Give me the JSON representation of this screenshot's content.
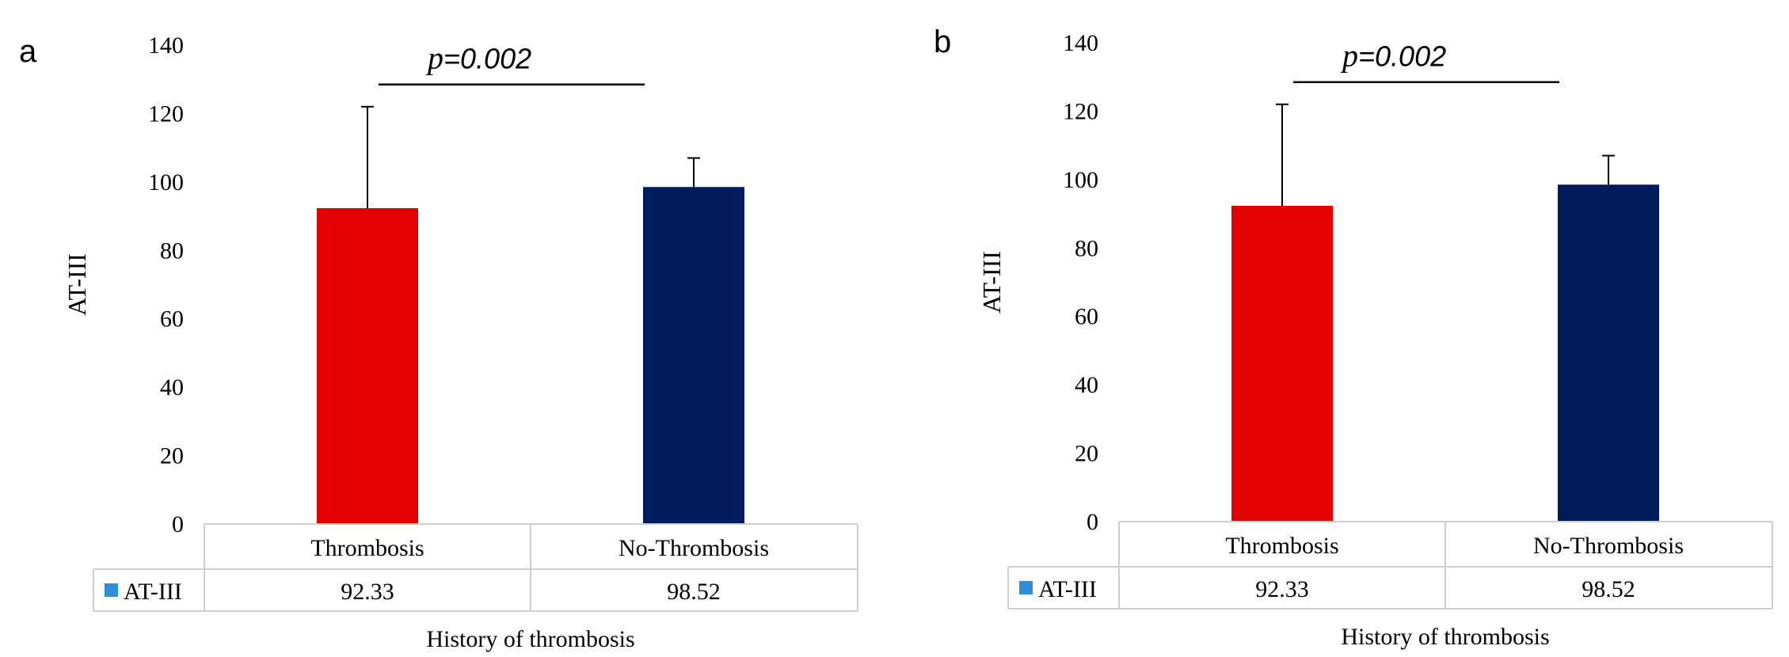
{
  "chart_data": [
    {
      "panel_label": "a",
      "type": "bar",
      "categories": [
        "Thrombosis",
        "No-Thrombosis"
      ],
      "series": [
        {
          "name": "AT-III",
          "values": [
            92.33,
            98.52
          ],
          "error_upper": [
            122,
            107
          ],
          "colors": [
            "#e30000",
            "#001c5c"
          ]
        }
      ],
      "data_table": {
        "legend_label": "AT-III",
        "legend_color": "#2e8fd8",
        "values": [
          "92.33",
          "98.52"
        ]
      },
      "annotation": {
        "p_italic": "p",
        "p_value": "=0.002"
      },
      "ylabel": "AT-III",
      "xlabel": "History of thrombosis",
      "ylim": [
        0,
        140
      ],
      "yticks": [
        0,
        20,
        40,
        60,
        80,
        100,
        120,
        140
      ],
      "grid": false
    },
    {
      "panel_label": "b",
      "type": "bar",
      "categories": [
        "Thrombosis",
        "No-Thrombosis"
      ],
      "series": [
        {
          "name": "AT-III",
          "values": [
            92.33,
            98.52
          ],
          "error_upper": [
            122,
            107
          ],
          "colors": [
            "#e30000",
            "#001c5c"
          ]
        }
      ],
      "data_table": {
        "legend_label": "AT-III",
        "legend_color": "#2e8fd8",
        "values": [
          "92.33",
          "98.52"
        ]
      },
      "annotation": {
        "p_italic": "p",
        "p_value": "=0.002"
      },
      "ylabel": "AT-III",
      "xlabel": "History of thrombosis",
      "ylim": [
        0,
        140
      ],
      "yticks": [
        0,
        20,
        40,
        60,
        80,
        100,
        120,
        140
      ],
      "grid": false
    }
  ]
}
